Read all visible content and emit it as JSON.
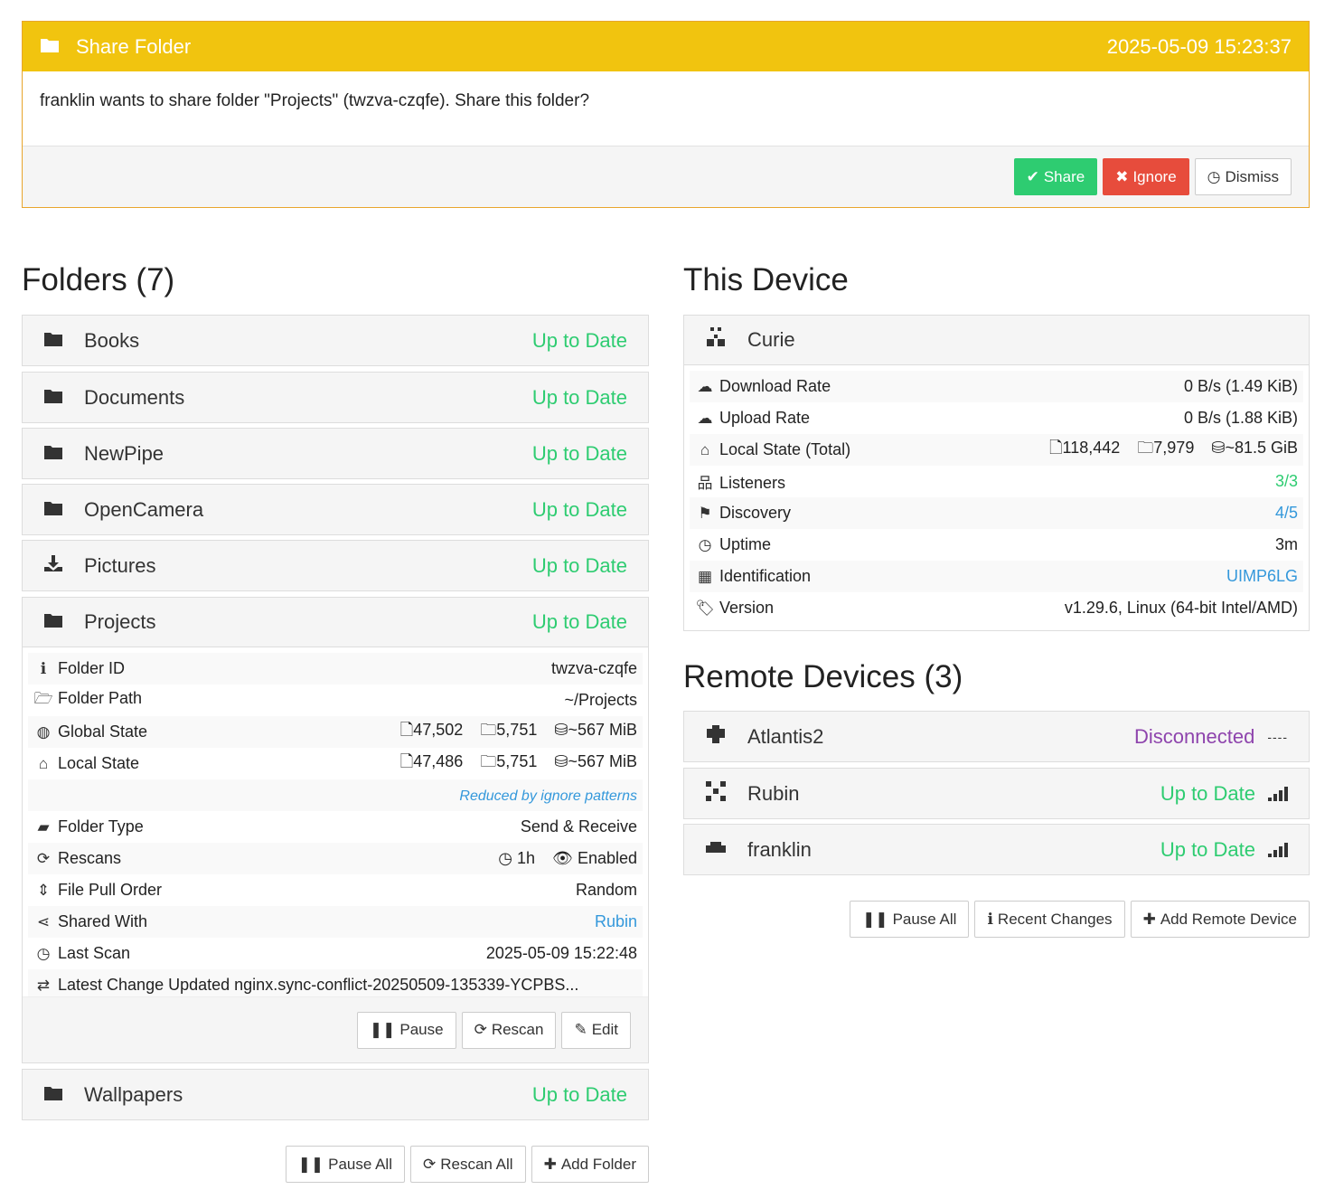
{
  "notice": {
    "title": "Share Folder",
    "timestamp": "2025-05-09 15:23:37",
    "message": "franklin wants to share folder \"Projects\" (twzva-czqfe). Share this folder?",
    "share_label": "Share",
    "ignore_label": "Ignore",
    "dismiss_label": "Dismiss"
  },
  "folders": {
    "heading": "Folders (7)",
    "items": [
      {
        "name": "Books",
        "status": "Up to Date",
        "icon": "folder-icon"
      },
      {
        "name": "Documents",
        "status": "Up to Date",
        "icon": "folder-icon"
      },
      {
        "name": "NewPipe",
        "status": "Up to Date",
        "icon": "folder-icon"
      },
      {
        "name": "OpenCamera",
        "status": "Up to Date",
        "icon": "folder-icon"
      },
      {
        "name": "Pictures",
        "status": "Up to Date",
        "icon": "download-icon"
      },
      {
        "name": "Projects",
        "status": "Up to Date",
        "icon": "folder-icon"
      },
      {
        "name": "Wallpapers",
        "status": "Up to Date",
        "icon": "folder-icon"
      }
    ],
    "projects_details": {
      "folder_id_label": "Folder ID",
      "folder_id": "twzva-czqfe",
      "folder_path_label": "Folder Path",
      "folder_path": "~/Projects",
      "global_state_label": "Global State",
      "global_files": "47,502",
      "global_dirs": "5,751",
      "global_size": "~567 MiB",
      "local_state_label": "Local State",
      "local_files": "47,486",
      "local_dirs": "5,751",
      "local_size": "~567 MiB",
      "ignore_note": "Reduced by ignore patterns",
      "folder_type_label": "Folder Type",
      "folder_type": "Send & Receive",
      "rescans_label": "Rescans",
      "rescan_interval": "1h",
      "watcher": "Enabled",
      "pull_order_label": "File Pull Order",
      "pull_order": "Random",
      "shared_with_label": "Shared With",
      "shared_with": "Rubin",
      "last_scan_label": "Last Scan",
      "last_scan": "2025-05-09 15:22:48",
      "latest_change_label": "Latest Change",
      "latest_change": "Updated nginx.sync-conflict-20250509-135339-YCPBS...",
      "pause_label": "Pause",
      "rescan_label": "Rescan",
      "edit_label": "Edit"
    },
    "pause_all_label": "Pause All",
    "rescan_all_label": "Rescan All",
    "add_folder_label": "Add Folder"
  },
  "this_device": {
    "heading": "This Device",
    "name": "Curie",
    "download_rate_label": "Download Rate",
    "download_rate": "0 B/s (1.49 KiB)",
    "upload_rate_label": "Upload Rate",
    "upload_rate": "0 B/s (1.88 KiB)",
    "local_state_label": "Local State (Total)",
    "local_files": "118,442",
    "local_dirs": "7,979",
    "local_size": "~81.5 GiB",
    "listeners_label": "Listeners",
    "listeners": "3/3",
    "discovery_label": "Discovery",
    "discovery": "4/5",
    "uptime_label": "Uptime",
    "uptime": "3m",
    "identification_label": "Identification",
    "identification": "UIMP6LG",
    "version_label": "Version",
    "version": "v1.29.6, Linux (64-bit Intel/AMD)"
  },
  "remote_devices": {
    "heading": "Remote Devices (3)",
    "items": [
      {
        "name": "Atlantis2",
        "status": "Disconnected",
        "signal": "----"
      },
      {
        "name": "Rubin",
        "status": "Up to Date"
      },
      {
        "name": "franklin",
        "status": "Up to Date"
      }
    ],
    "pause_all_label": "Pause All",
    "recent_changes_label": "Recent Changes",
    "add_remote_label": "Add Remote Device"
  }
}
